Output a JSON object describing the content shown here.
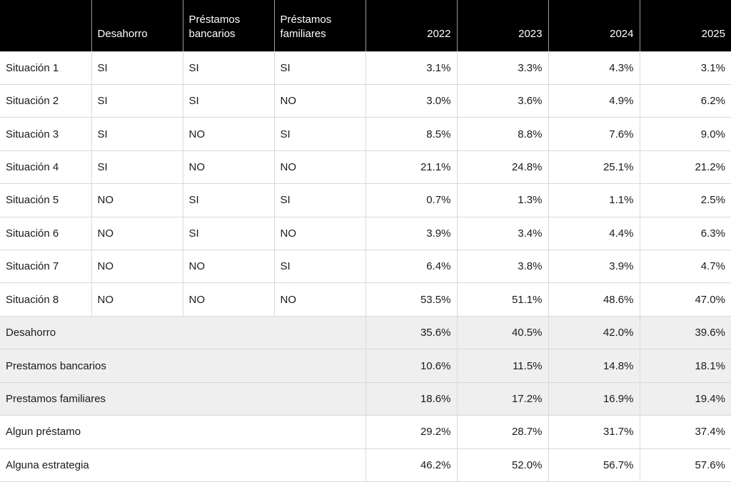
{
  "colors": {
    "header_bg": "#000000",
    "header_text": "#ffffff",
    "grid_line": "#d9d9d9",
    "header_divider": "#9a9a9a",
    "shaded_row_bg": "#efefef",
    "body_text": "#1a1a1a"
  },
  "chart_data": {
    "type": "table",
    "columns": [
      "",
      "Desahorro",
      "Préstamos bancarios",
      "Préstamos familiares",
      "2022",
      "2023",
      "2024",
      "2025"
    ],
    "situation_rows": [
      {
        "label": "Situación 1",
        "flags": [
          "SI",
          "SI",
          "SI"
        ],
        "values": [
          "3.1%",
          "3.3%",
          "4.3%",
          "3.1%"
        ]
      },
      {
        "label": "Situación 2",
        "flags": [
          "SI",
          "SI",
          "NO"
        ],
        "values": [
          "3.0%",
          "3.6%",
          "4.9%",
          "6.2%"
        ]
      },
      {
        "label": "Situación 3",
        "flags": [
          "SI",
          "NO",
          "SI"
        ],
        "values": [
          "8.5%",
          "8.8%",
          "7.6%",
          "9.0%"
        ]
      },
      {
        "label": "Situación 4",
        "flags": [
          "SI",
          "NO",
          "NO"
        ],
        "values": [
          "21.1%",
          "24.8%",
          "25.1%",
          "21.2%"
        ]
      },
      {
        "label": "Situación 5",
        "flags": [
          "NO",
          "SI",
          "SI"
        ],
        "values": [
          "0.7%",
          "1.3%",
          "1.1%",
          "2.5%"
        ]
      },
      {
        "label": "Situación 6",
        "flags": [
          "NO",
          "SI",
          "NO"
        ],
        "values": [
          "3.9%",
          "3.4%",
          "4.4%",
          "6.3%"
        ]
      },
      {
        "label": "Situación 7",
        "flags": [
          "NO",
          "NO",
          "SI"
        ],
        "values": [
          "6.4%",
          "3.8%",
          "3.9%",
          "4.7%"
        ]
      },
      {
        "label": "Situación 8",
        "flags": [
          "NO",
          "NO",
          "NO"
        ],
        "values": [
          "53.5%",
          "51.1%",
          "48.6%",
          "47.0%"
        ]
      }
    ],
    "summary_rows": [
      {
        "label": "Desahorro",
        "shaded": true,
        "values": [
          "35.6%",
          "40.5%",
          "42.0%",
          "39.6%"
        ]
      },
      {
        "label": "Prestamos bancarios",
        "shaded": true,
        "values": [
          "10.6%",
          "11.5%",
          "14.8%",
          "18.1%"
        ]
      },
      {
        "label": "Prestamos familiares",
        "shaded": true,
        "values": [
          "18.6%",
          "17.2%",
          "16.9%",
          "19.4%"
        ]
      },
      {
        "label": "Algun préstamo",
        "shaded": false,
        "values": [
          "29.2%",
          "28.7%",
          "31.7%",
          "37.4%"
        ]
      },
      {
        "label": "Alguna estrategia",
        "shaded": false,
        "values": [
          "46.2%",
          "52.0%",
          "56.7%",
          "57.6%"
        ]
      }
    ]
  }
}
